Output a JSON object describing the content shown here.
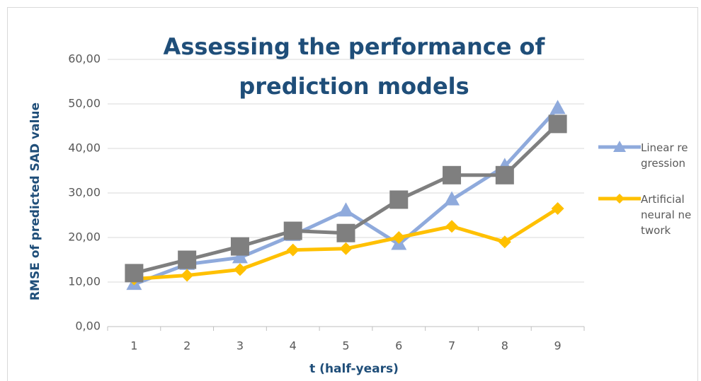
{
  "chart_data": {
    "type": "line",
    "title": "Assessing the performance of prediction models",
    "x_label": "t (half-years)",
    "y_label": "RMSE of predicted SAD value",
    "categories": [
      "1",
      "2",
      "3",
      "4",
      "5",
      "6",
      "7",
      "8",
      "9"
    ],
    "series": [
      {
        "name": "Linear regression",
        "color": "#8faadc",
        "marker": "triangle",
        "values": [
          9.5,
          14,
          15.5,
          20.5,
          26,
          18.5,
          28.5,
          36,
          49
        ]
      },
      {
        "name": "Artificial neural network",
        "color": "#ffc000",
        "marker": "diamond",
        "values": [
          10.7,
          11.5,
          12.8,
          17.2,
          17.5,
          20,
          22.5,
          19,
          26.5
        ]
      },
      {
        "color": "#7f7f7f",
        "marker": "square",
        "values": [
          12,
          15,
          18,
          21.5,
          21,
          28.5,
          34,
          34,
          45.5
        ]
      }
    ],
    "ylim": [
      0,
      60
    ],
    "yticks": [
      {
        "value": 0,
        "label": "0,00"
      },
      {
        "value": 10,
        "label": "10,00"
      },
      {
        "value": 20,
        "label": "20,00"
      },
      {
        "value": 30,
        "label": "30,00"
      },
      {
        "value": 40,
        "label": "40,00"
      },
      {
        "value": 50,
        "label": "50,00"
      },
      {
        "value": 60,
        "label": "60,00"
      }
    ],
    "grid": true,
    "legend": "right"
  }
}
